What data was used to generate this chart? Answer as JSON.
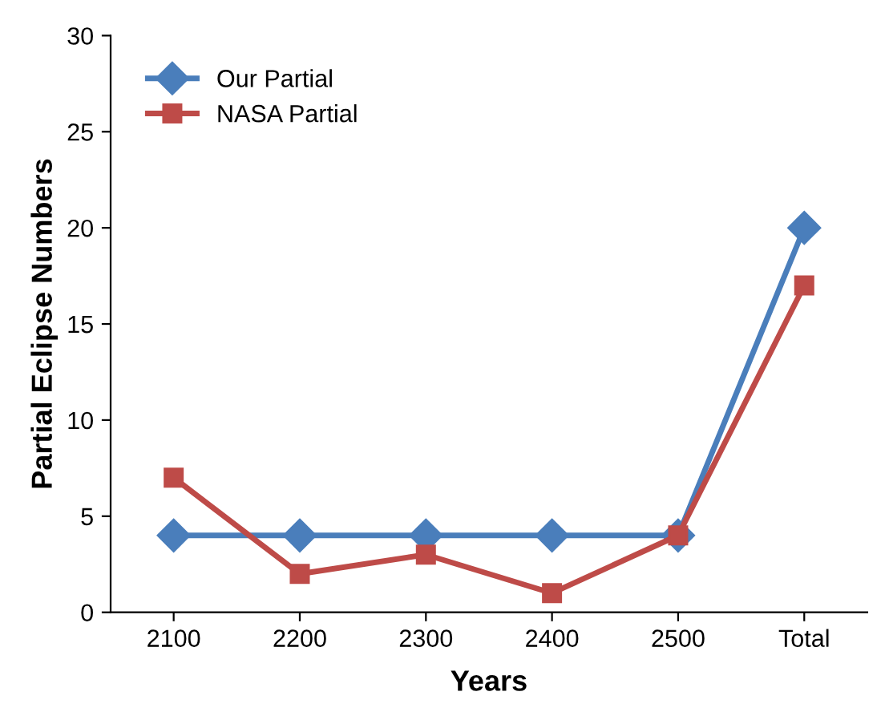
{
  "chart_data": {
    "type": "line",
    "xlabel": "Years",
    "ylabel": "Partial Eclipse Numbers",
    "categories": [
      "2100",
      "2200",
      "2300",
      "2400",
      "2500",
      "Total"
    ],
    "series": [
      {
        "name": "Our Partial",
        "color": "#4a7ebb",
        "marker": "diamond",
        "values": [
          4,
          4,
          4,
          4,
          4,
          20
        ]
      },
      {
        "name": "NASA Partial",
        "color": "#be4b48",
        "marker": "square",
        "values": [
          7,
          2,
          3,
          1,
          4,
          17
        ]
      }
    ],
    "ylim": [
      0,
      30
    ],
    "yticks": [
      0,
      5,
      10,
      15,
      20,
      25,
      30
    ],
    "grid": false,
    "legend": "top left",
    "line_style": "solid"
  }
}
